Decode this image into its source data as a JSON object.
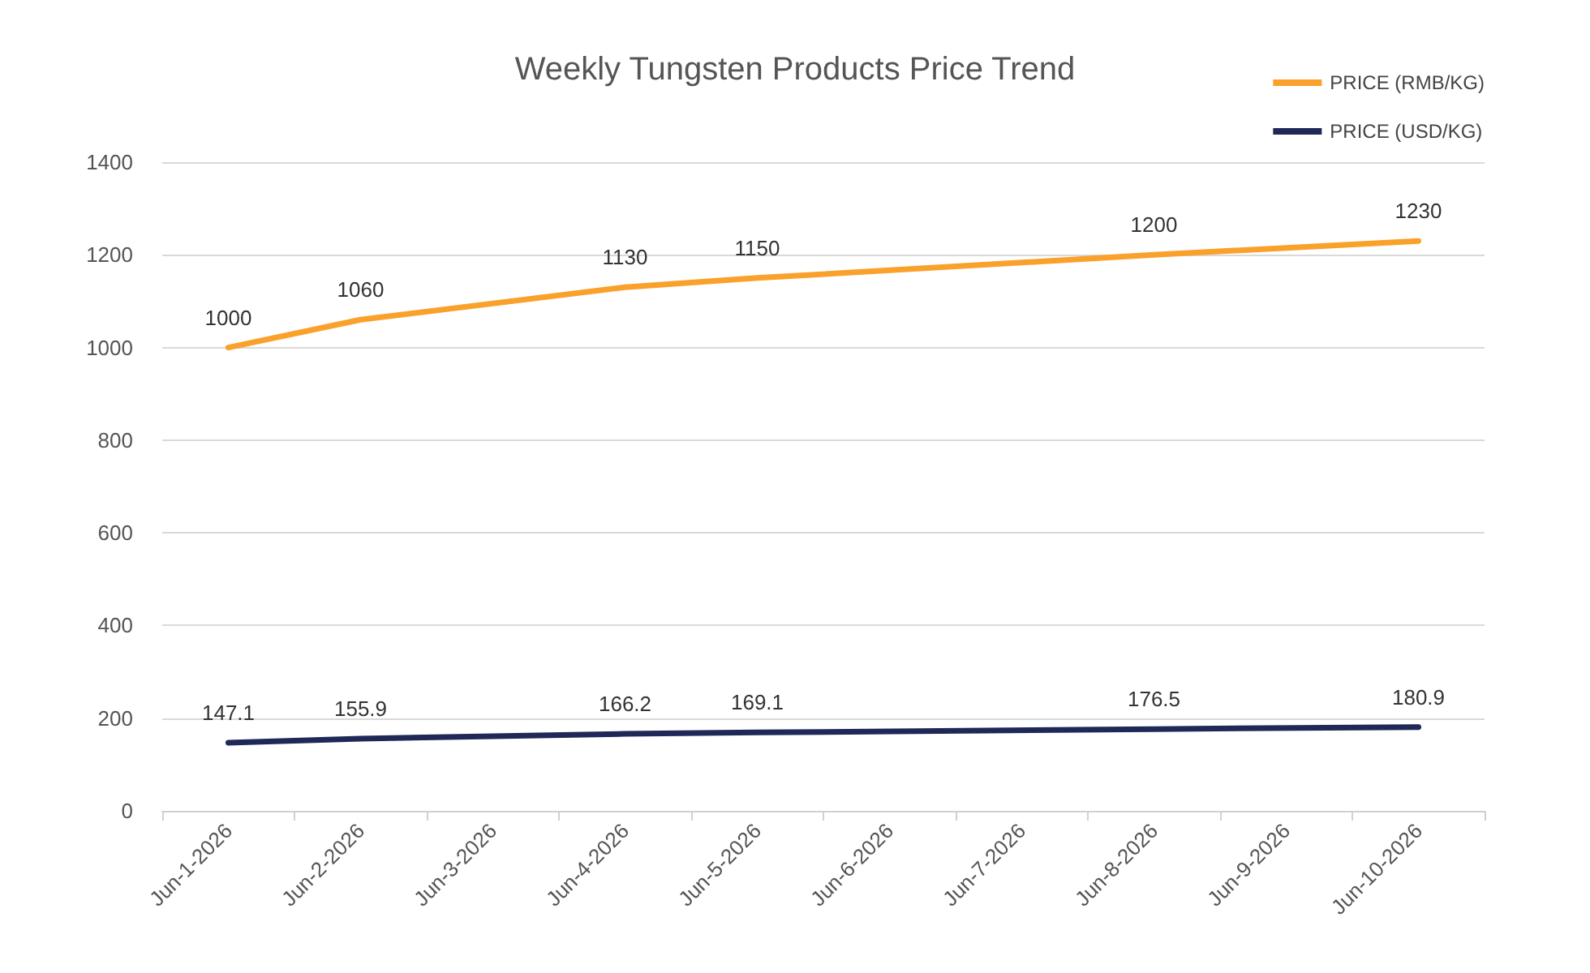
{
  "chart_data": {
    "type": "line",
    "title": "Weekly Tungsten Products Price Trend",
    "x": [
      "2026-06-01",
      "2026-06-02",
      "2026-06-04",
      "2026-06-05",
      "2026-06-08",
      "2026-06-10"
    ],
    "series": [
      {
        "name": "PRICE (RMB/KG)",
        "color": "#f9a12a",
        "values": [
          1000,
          1060,
          1130,
          1150,
          1200,
          1230
        ]
      },
      {
        "name": "PRICE (USD/KG)",
        "color": "#1f2857",
        "values": [
          147.1,
          155.9,
          166.2,
          169.1,
          176.5,
          180.9
        ]
      }
    ],
    "xlim": [
      "2026-05-31T12:00",
      "2026-06-10T12:00"
    ],
    "xticks": [
      {
        "value": "2026-06-01",
        "label": "Jun-1-2026"
      },
      {
        "value": "2026-06-02",
        "label": "Jun-2-2026"
      },
      {
        "value": "2026-06-03",
        "label": "Jun-3-2026"
      },
      {
        "value": "2026-06-04",
        "label": "Jun-4-2026"
      },
      {
        "value": "2026-06-05",
        "label": "Jun-5-2026"
      },
      {
        "value": "2026-06-06",
        "label": "Jun-6-2026"
      },
      {
        "value": "2026-06-07",
        "label": "Jun-7-2026"
      },
      {
        "value": "2026-06-08",
        "label": "Jun-8-2026"
      },
      {
        "value": "2026-06-09",
        "label": "Jun-9-2026"
      },
      {
        "value": "2026-06-10",
        "label": "Jun-10-2026"
      },
      {
        "value": "2026-05-31T12:00",
        "label": null
      },
      {
        "value": "2026-06-01T12:00",
        "label": null
      },
      {
        "value": "2026-06-02T12:00",
        "label": null
      },
      {
        "value": "2026-06-03T12:00",
        "label": null
      },
      {
        "value": "2026-06-04T12:00",
        "label": null
      },
      {
        "value": "2026-06-05T12:00",
        "label": null
      },
      {
        "value": "2026-06-06T12:00",
        "label": null
      },
      {
        "value": "2026-06-07T12:00",
        "label": null
      },
      {
        "value": "2026-06-08T12:00",
        "label": null
      },
      {
        "value": "2026-06-09T12:00",
        "label": null
      },
      {
        "value": "2026-06-10T12:00",
        "label": null
      }
    ],
    "ylim": [
      0,
      1400
    ],
    "yticks": [
      0,
      200,
      400,
      600,
      800,
      1000,
      1200,
      1400
    ],
    "grid": "y",
    "legend": "top right",
    "marker": "none",
    "line_style": "solid",
    "data_labels": true
  }
}
